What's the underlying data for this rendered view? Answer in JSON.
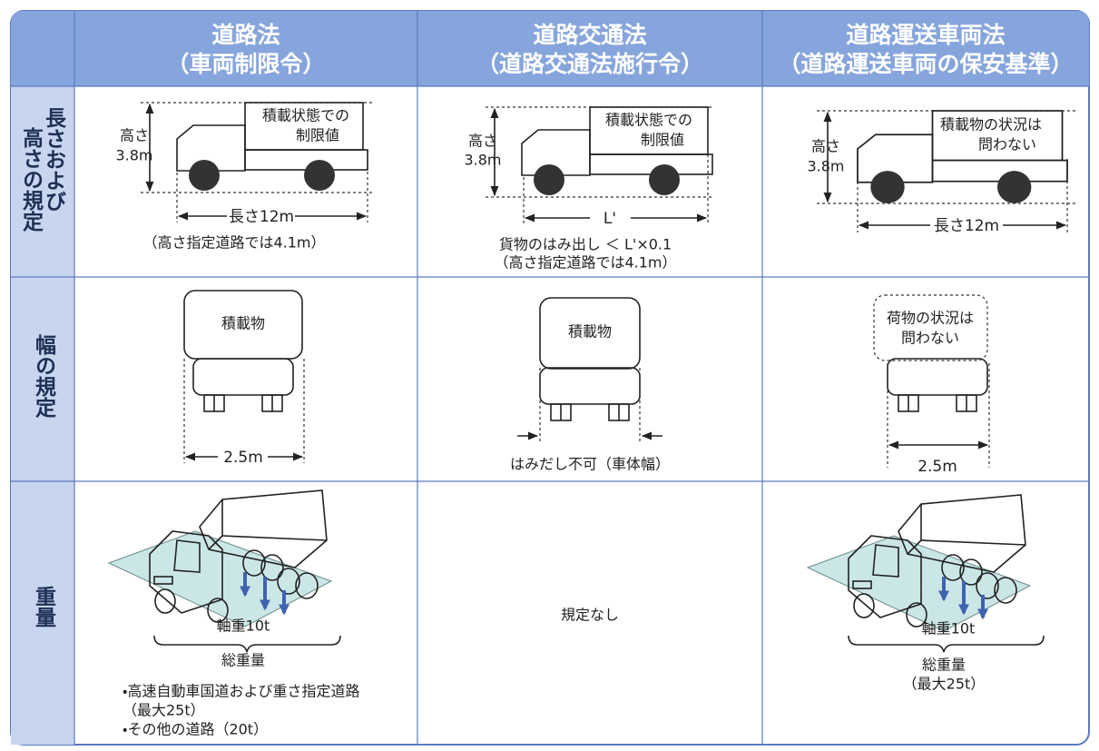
{
  "header": {
    "columns": [
      {
        "title": "道路法",
        "subtitle": "（車両制限令）"
      },
      {
        "title": "道路交通法",
        "subtitle": "（道路交通法施行令）"
      },
      {
        "title": "道路運送車両法",
        "subtitle": "（道路運送車両の保安基準）"
      }
    ]
  },
  "rows": [
    {
      "label": [
        "長さおよび",
        "高さの規定"
      ],
      "cells": [
        {
          "height_label": "高さ",
          "height_value": "3.8m",
          "load_box": [
            "積載状態での",
            "制限値"
          ],
          "length": "長さ12m",
          "notes": [
            "（高さ指定道路では4.1m）"
          ]
        },
        {
          "height_label": "高さ",
          "height_value": "3.8m",
          "load_box": [
            "積載状態での",
            "制限値"
          ],
          "length": "L'",
          "notes": [
            "貨物のはみ出し ＜ L'×0.1",
            "（高さ指定道路では4.1m）"
          ]
        },
        {
          "height_label": "高さ",
          "height_value": "3.8m",
          "load_box": [
            "積載物の状況は",
            "問わない"
          ],
          "length": "長さ12m"
        }
      ]
    },
    {
      "label": [
        "幅の規定"
      ],
      "cells": [
        {
          "load_box": [
            "積載物"
          ],
          "width": "2.5m"
        },
        {
          "load_box": [
            "積載物"
          ],
          "notes": [
            "はみだし不可（車体幅）"
          ]
        },
        {
          "load_box": [
            "荷物の状況は",
            "問わない"
          ],
          "width": "2.5m"
        }
      ]
    },
    {
      "label": [
        "重量"
      ],
      "cells": [
        {
          "axle": "軸重10t",
          "total": "総重量",
          "notes": [
            "・高速自動車国道および重さ指定道路",
            "（最大25t）",
            "・その他の道路（20t）"
          ]
        },
        {
          "notes": [
            "規定なし"
          ]
        },
        {
          "axle": "軸重10t",
          "total": "総重量",
          "notes": [
            "（最大25t）"
          ]
        }
      ]
    }
  ]
}
